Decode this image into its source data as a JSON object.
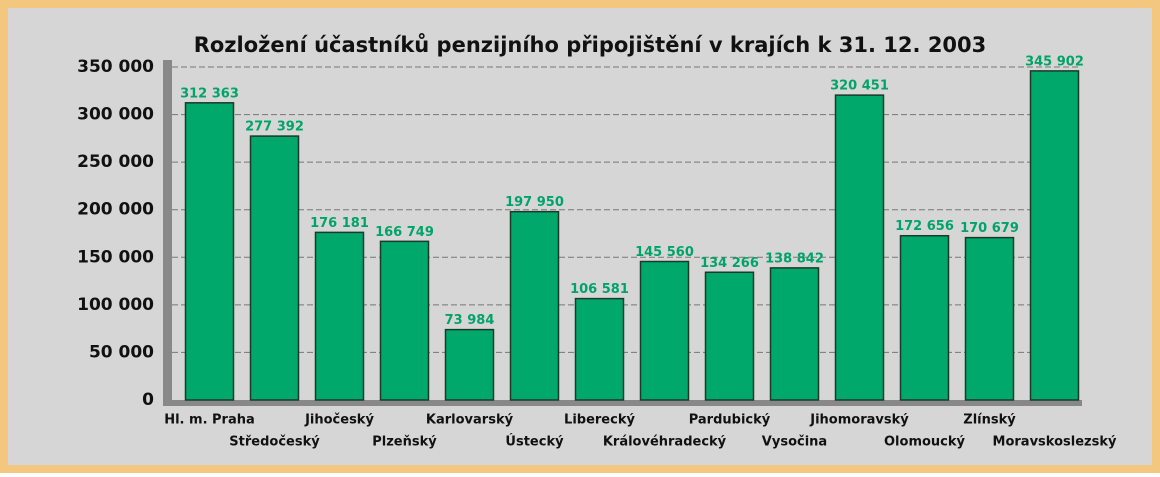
{
  "chart_data": {
    "type": "bar",
    "title": "Rozložení účastníků penzijního připojištění v krajích k 31. 12. 2003",
    "categories": [
      "Hl. m. Praha",
      "Středočeský",
      "Jihočeský",
      "Plzeňský",
      "Karlovarský",
      "Ústecký",
      "Liberecký",
      "Královéhradecký",
      "Pardubický",
      "Vysočina",
      "Jihomoravský",
      "Olomoucký",
      "Zlínský",
      "Moravskoslezský"
    ],
    "values": [
      312363,
      277392,
      176181,
      166749,
      73984,
      197950,
      106581,
      145560,
      134266,
      138842,
      320451,
      172656,
      170679,
      345902
    ],
    "value_labels": [
      "312 363",
      "277 392",
      "176 181",
      "166 749",
      "73 984",
      "197 950",
      "106 581",
      "145 560",
      "134 266",
      "138 842",
      "320 451",
      "172 656",
      "170 679",
      "345 902"
    ],
    "color": "#00a86b",
    "ylim": [
      0,
      350000
    ],
    "yticks": [
      0,
      {
        "value": 50000,
        "label": "50 000"
      },
      {
        "value": 100000,
        "label": "100 000"
      },
      {
        "value": 150000,
        "label": "150 000"
      },
      {
        "value": 200000,
        "label": "200 000"
      },
      {
        "value": 250000,
        "label": "250 000"
      },
      {
        "value": 300000,
        "label": "300 000"
      },
      {
        "value": 350000,
        "label": "350 000"
      }
    ],
    "grid": true
  }
}
